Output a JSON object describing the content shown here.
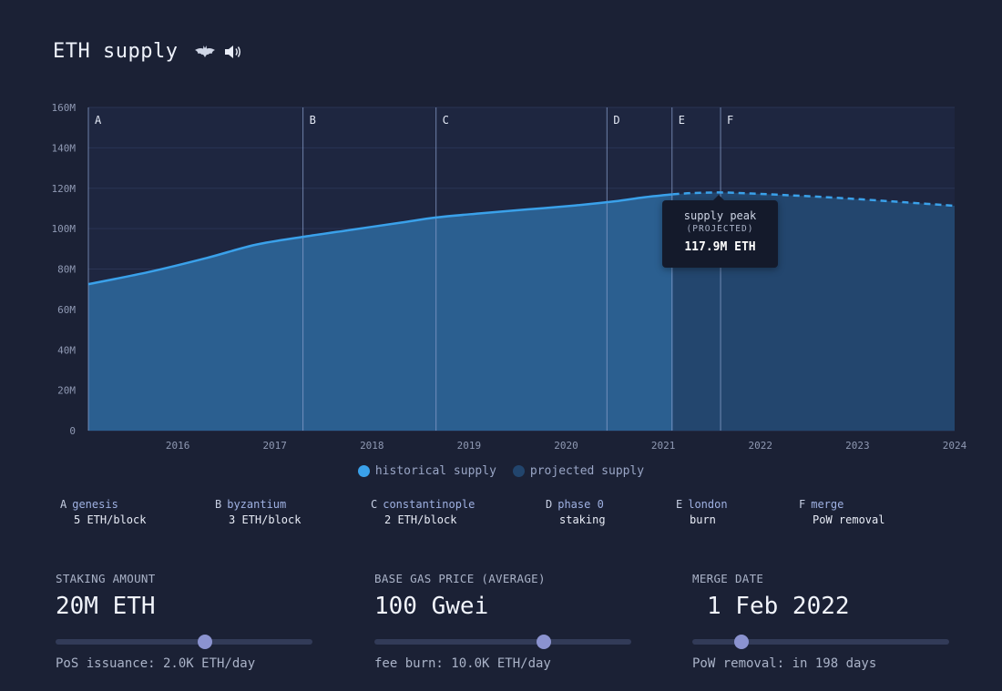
{
  "header": {
    "title": "ETH supply",
    "icons": [
      "bat-icon",
      "speaker-icon"
    ]
  },
  "chart_data": {
    "type": "area",
    "x_ticks": [
      "2016",
      "2017",
      "2018",
      "2019",
      "2020",
      "2021",
      "2022",
      "2023",
      "2024"
    ],
    "y_ticks": [
      "0",
      "20M",
      "40M",
      "60M",
      "80M",
      "100M",
      "120M",
      "140M",
      "160M"
    ],
    "ylim": [
      0,
      160
    ],
    "xlim": [
      2015.58,
      2024.5
    ],
    "y_unit": "M ETH",
    "grid": true,
    "legend_position": "bottom-center",
    "series": [
      {
        "name": "historical supply",
        "color": "#3aa1ea",
        "x": [
          2015.58,
          2016.2,
          2016.8,
          2017.3,
          2017.8,
          2018.3,
          2018.8,
          2019.16,
          2019.6,
          2020.1,
          2020.6,
          2021.0,
          2021.3,
          2021.6
        ],
        "y": [
          72.5,
          78.5,
          85.5,
          92.0,
          96.0,
          99.5,
          103.0,
          105.5,
          107.5,
          109.5,
          111.5,
          113.5,
          115.5,
          117.0
        ]
      },
      {
        "name": "projected supply",
        "color": "#22456d",
        "x": [
          2021.6,
          2021.8,
          2022.09,
          2022.4,
          2022.8,
          2023.2,
          2023.6,
          2024.0,
          2024.5
        ],
        "y": [
          117.0,
          117.6,
          117.9,
          117.4,
          116.5,
          115.5,
          114.3,
          113.0,
          111.3
        ]
      }
    ],
    "events": [
      {
        "letter": "A",
        "name": "genesis",
        "desc": "5 ETH/block",
        "x": 2015.58
      },
      {
        "letter": "B",
        "name": "byzantium",
        "desc": "3 ETH/block",
        "x": 2017.79
      },
      {
        "letter": "C",
        "name": "constantinople",
        "desc": "2 ETH/block",
        "x": 2019.16
      },
      {
        "letter": "D",
        "name": "phase 0",
        "desc": "staking",
        "x": 2020.92
      },
      {
        "letter": "E",
        "name": "london",
        "desc": "burn",
        "x": 2021.59
      },
      {
        "letter": "F",
        "name": "merge",
        "desc": "PoW removal",
        "x": 2022.09
      }
    ],
    "tooltip": {
      "title": "supply peak",
      "subtitle": "(PROJECTED)",
      "value": "117.9M ETH"
    }
  },
  "legend": {
    "historical": "historical supply",
    "projected": "projected supply",
    "historical_color": "#3aa1ea",
    "projected_color": "#22456d"
  },
  "controls": {
    "staking": {
      "label": "STAKING AMOUNT",
      "value": "20M ETH",
      "note": "PoS issuance: 2.0K ETH/day",
      "slider_fraction": 0.58
    },
    "gas": {
      "label": "BASE GAS PRICE (AVERAGE)",
      "value": "100 Gwei",
      "note": "fee burn: 10.0K ETH/day",
      "slider_fraction": 0.66
    },
    "merge": {
      "label": "MERGE DATE",
      "value": "1 Feb 2022",
      "note": "PoW removal: in 198 days",
      "slider_fraction": 0.19
    }
  }
}
